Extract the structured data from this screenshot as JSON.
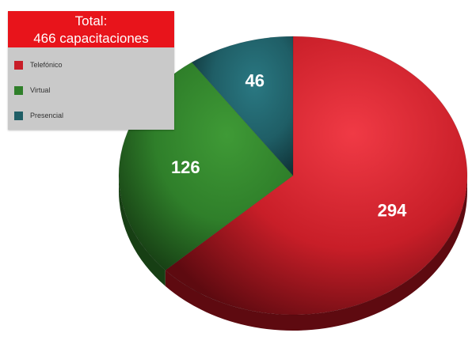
{
  "legend": {
    "title_line1": "Total:",
    "title_line2": "466 capacitaciones",
    "header_color": "#e8141b",
    "background_color": "#c9c9c9"
  },
  "chart_data": {
    "type": "pie",
    "style": "3d",
    "total": 466,
    "legend_position": "top-left",
    "slices": [
      {
        "name": "Telefónico",
        "value": 294,
        "color": "#c81e28",
        "dark": "#5e0a10",
        "light": "#f03a45"
      },
      {
        "name": "Virtual",
        "value": 126,
        "color": "#2f7f2a",
        "dark": "#173f14",
        "light": "#3f9a36"
      },
      {
        "name": "Presencial",
        "value": 46,
        "color": "#1f5e66",
        "dark": "#0e2f33",
        "light": "#2a7882"
      }
    ]
  }
}
